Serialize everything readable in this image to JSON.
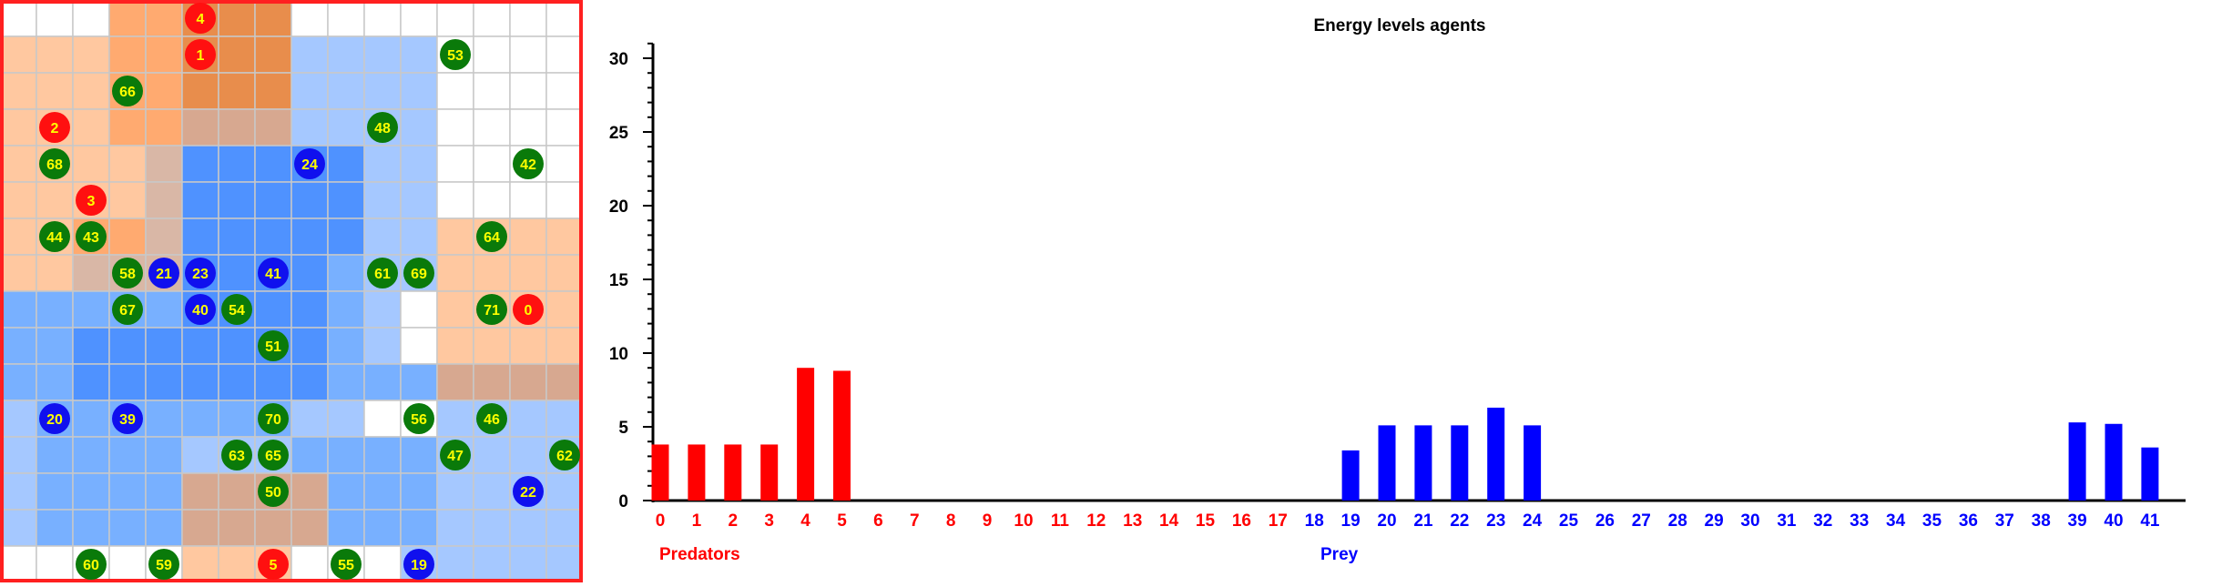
{
  "grid": {
    "cols": 16,
    "rows": 16,
    "border_color": "#ff2020",
    "cell_line_color": "#c8c8c8",
    "colors": {
      "empty": "#ffffff",
      "orange_light": "#ffc8a0",
      "orange_mid": "#ffaa70",
      "orange_strong": "#e88d4c",
      "tan": "#d7a890",
      "tan_light": "#d9b7a6",
      "blue_light": "#a5c8ff",
      "blue_mid": "#78b0ff",
      "blue_strong": "#4f92ff",
      "purple": "#a999b9",
      "predator": "#ff1010",
      "prey": "#1010ee",
      "plant": "#0a7a0a",
      "label": "#ffff00"
    },
    "cells": [
      "WWWQQRRRWWWWWWWW",
      "PPPQQRRRBBBBWWWW",
      "PPPQQRRRBBBBWWWW",
      "PPPQQTTTBBBBWWWW",
      "PPPPVSSSSSBBWWWW",
      "PPPPVSSSSSBBWWWW",
      "PPQQVSSSSSBBPPPP",
      "PPVVVSSSSMBBPPPP",
      "MMMMMSSSSMBWPPPP",
      "MMSSSSSSSMBWPPPP",
      "MMSSSSSSSMMMTTTT",
      "BMMMMMMMBBWWBBBB",
      "BMMMMBBBMMMMBBBB",
      "BMMMMTTTTMMMBBBB",
      "BMMMMTTTTMMMBBBB",
      "WWWWWPPPWWWBBBBB"
    ],
    "agents": [
      {
        "id": "4",
        "type": "predator",
        "col": 5,
        "row": 0
      },
      {
        "id": "1",
        "type": "predator",
        "col": 5,
        "row": 1
      },
      {
        "id": "53",
        "type": "plant",
        "col": 12,
        "row": 1
      },
      {
        "id": "66",
        "type": "plant",
        "col": 3,
        "row": 2
      },
      {
        "id": "2",
        "type": "predator",
        "col": 1,
        "row": 3
      },
      {
        "id": "48",
        "type": "plant",
        "col": 10,
        "row": 3
      },
      {
        "id": "68",
        "type": "plant",
        "col": 1,
        "row": 4
      },
      {
        "id": "24",
        "type": "prey",
        "col": 8,
        "row": 4
      },
      {
        "id": "42",
        "type": "plant",
        "col": 14,
        "row": 4
      },
      {
        "id": "3",
        "type": "predator",
        "col": 2,
        "row": 5
      },
      {
        "id": "44",
        "type": "plant",
        "col": 1,
        "row": 6
      },
      {
        "id": "43",
        "type": "plant",
        "col": 2,
        "row": 6
      },
      {
        "id": "64",
        "type": "plant",
        "col": 13,
        "row": 6
      },
      {
        "id": "58",
        "type": "plant",
        "col": 3,
        "row": 7
      },
      {
        "id": "21",
        "type": "prey",
        "col": 4,
        "row": 7
      },
      {
        "id": "23",
        "type": "prey",
        "col": 5,
        "row": 7
      },
      {
        "id": "41",
        "type": "prey",
        "col": 7,
        "row": 7
      },
      {
        "id": "61",
        "type": "plant",
        "col": 10,
        "row": 7
      },
      {
        "id": "69",
        "type": "plant",
        "col": 11,
        "row": 7
      },
      {
        "id": "67",
        "type": "plant",
        "col": 3,
        "row": 8
      },
      {
        "id": "40",
        "type": "prey",
        "col": 5,
        "row": 8
      },
      {
        "id": "54",
        "type": "plant",
        "col": 6,
        "row": 8
      },
      {
        "id": "71",
        "type": "plant",
        "col": 13,
        "row": 8
      },
      {
        "id": "0",
        "type": "predator",
        "col": 14,
        "row": 8
      },
      {
        "id": "51",
        "type": "plant",
        "col": 7,
        "row": 9
      },
      {
        "id": "20",
        "type": "prey",
        "col": 1,
        "row": 11
      },
      {
        "id": "39",
        "type": "prey",
        "col": 3,
        "row": 11
      },
      {
        "id": "70",
        "type": "plant",
        "col": 7,
        "row": 11
      },
      {
        "id": "56",
        "type": "plant",
        "col": 11,
        "row": 11
      },
      {
        "id": "46",
        "type": "plant",
        "col": 13,
        "row": 11
      },
      {
        "id": "63",
        "type": "plant",
        "col": 6,
        "row": 12
      },
      {
        "id": "65",
        "type": "plant",
        "col": 7,
        "row": 12
      },
      {
        "id": "47",
        "type": "plant",
        "col": 12,
        "row": 12
      },
      {
        "id": "62",
        "type": "plant",
        "col": 15,
        "row": 12
      },
      {
        "id": "50",
        "type": "plant",
        "col": 7,
        "row": 13
      },
      {
        "id": "22",
        "type": "prey",
        "col": 14,
        "row": 13
      },
      {
        "id": "60",
        "type": "plant",
        "col": 2,
        "row": 15
      },
      {
        "id": "59",
        "type": "plant",
        "col": 4,
        "row": 15
      },
      {
        "id": "5",
        "type": "predator",
        "col": 7,
        "row": 15
      },
      {
        "id": "55",
        "type": "plant",
        "col": 9,
        "row": 15
      },
      {
        "id": "19",
        "type": "prey",
        "col": 11,
        "row": 15
      }
    ]
  },
  "chart_data": {
    "type": "bar",
    "title": "Energy levels agents",
    "categories": [
      "0",
      "1",
      "2",
      "3",
      "4",
      "5",
      "6",
      "7",
      "8",
      "9",
      "10",
      "11",
      "12",
      "13",
      "14",
      "15",
      "16",
      "17",
      "18",
      "19",
      "20",
      "21",
      "22",
      "23",
      "24",
      "25",
      "26",
      "27",
      "28",
      "29",
      "30",
      "31",
      "32",
      "33",
      "34",
      "35",
      "36",
      "37",
      "38",
      "39",
      "40",
      "41"
    ],
    "values": [
      3.8,
      3.8,
      3.8,
      3.8,
      9,
      8.8,
      0,
      0,
      0,
      0,
      0,
      0,
      0,
      0,
      0,
      0,
      0,
      0,
      0,
      3.4,
      5.1,
      5.1,
      5.1,
      6.3,
      5.1,
      0,
      0,
      0,
      0,
      0,
      0,
      0,
      0,
      0,
      0,
      0,
      0,
      0,
      0,
      5.3,
      5.2,
      3.6
    ],
    "bar_colors": [
      "predator",
      "predator",
      "predator",
      "predator",
      "predator",
      "predator",
      "predator",
      "predator",
      "predator",
      "predator",
      "predator",
      "predator",
      "predator",
      "predator",
      "predator",
      "predator",
      "predator",
      "predator",
      "prey",
      "prey",
      "prey",
      "prey",
      "prey",
      "prey",
      "prey",
      "prey",
      "prey",
      "prey",
      "prey",
      "prey",
      "prey",
      "prey",
      "prey",
      "prey",
      "prey",
      "prey",
      "prey",
      "prey",
      "prey",
      "prey",
      "prey",
      "prey"
    ],
    "colors": {
      "predator": "#ff0000",
      "prey": "#0000ff",
      "axis": "#000000"
    },
    "ylim": [
      0,
      31
    ],
    "yticks": [
      0,
      5,
      10,
      15,
      20,
      25,
      30
    ],
    "legend": [
      {
        "label": "Predators",
        "color": "#ff0000"
      },
      {
        "label": "Prey",
        "color": "#0000ff"
      }
    ]
  }
}
